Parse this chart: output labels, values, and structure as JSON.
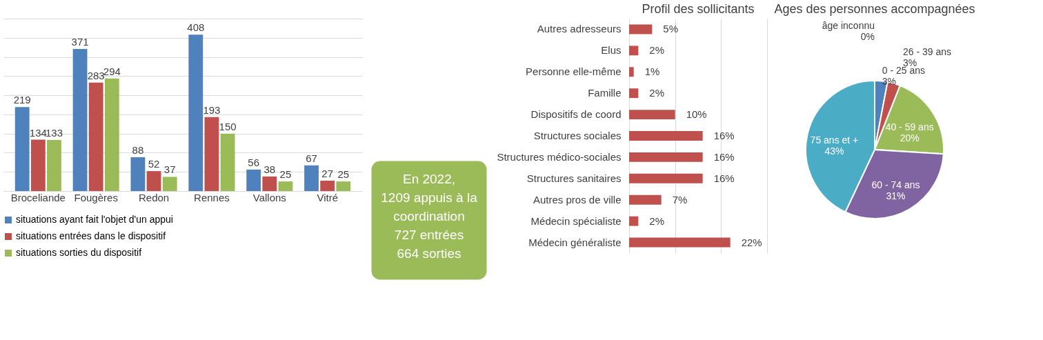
{
  "chart_data": [
    {
      "type": "bar",
      "categories": [
        "Broceliande",
        "Fougères",
        "Redon",
        "Rennes",
        "Vallons",
        "Vitré"
      ],
      "series": [
        {
          "name": "situations ayant fait l'objet d'un appui",
          "color": "#4f81bd",
          "values": [
            219,
            371,
            88,
            408,
            56,
            67
          ]
        },
        {
          "name": "situations entrées dans le dispositif",
          "color": "#c0504d",
          "values": [
            134,
            283,
            52,
            193,
            38,
            27
          ]
        },
        {
          "name": "situations sorties du dispositif",
          "color": "#9bbb59",
          "values": [
            133,
            294,
            37,
            150,
            25,
            25
          ]
        }
      ],
      "tick_labels": "x",
      "grid": "y",
      "data_labels": true,
      "legend": "bottom"
    },
    {
      "type": "other",
      "color": "#9bbb59",
      "annotations": [
        "En 2022,",
        "1209 appuis à la",
        "coordination",
        "727 entrées",
        "664 sorties"
      ]
    },
    {
      "type": "bar",
      "orientation": "horizontal",
      "title": "Profil des sollicitants",
      "categories": [
        "Autres adresseurs",
        "Elus",
        "Personne elle-même",
        "Famille",
        "Dispositifs de coord",
        "Structures sociales",
        "Structures médico-sociales",
        "Structures sanitaires",
        "Autres pros de ville",
        "Médecin spécialiste",
        "Médecin généraliste"
      ],
      "values": [
        5,
        2,
        1,
        2,
        10,
        16,
        16,
        16,
        7,
        2,
        22
      ],
      "value_labels": [
        "5%",
        "2%",
        "1%",
        "2%",
        "10%",
        "16%",
        "16%",
        "16%",
        "7%",
        "2%",
        "22%"
      ],
      "color": "#c0504d",
      "xlim": [
        0,
        30
      ],
      "xticks": [
        {
          "value": 0,
          "label": null
        },
        {
          "value": 10,
          "label": null
        },
        {
          "value": 20,
          "label": null
        },
        {
          "value": 30,
          "label": null
        }
      ],
      "tick_labels": "y",
      "grid": "x"
    },
    {
      "type": "pie",
      "title": "Ages des personnes accompagnées",
      "categories": [
        "0 - 25 ans",
        "26 - 39 ans",
        "40 - 59 ans",
        "60 - 74 ans",
        "75 ans et +",
        "âge inconnu"
      ],
      "values": [
        3,
        3,
        20,
        31,
        43,
        0
      ],
      "value_labels": [
        "3%",
        "3%",
        "20%",
        "31%",
        "43%",
        "0%"
      ],
      "colors": [
        "#4f81bd",
        "#c0504d",
        "#9bbb59",
        "#8064a2",
        "#4bacc6",
        "#f79646"
      ]
    }
  ]
}
